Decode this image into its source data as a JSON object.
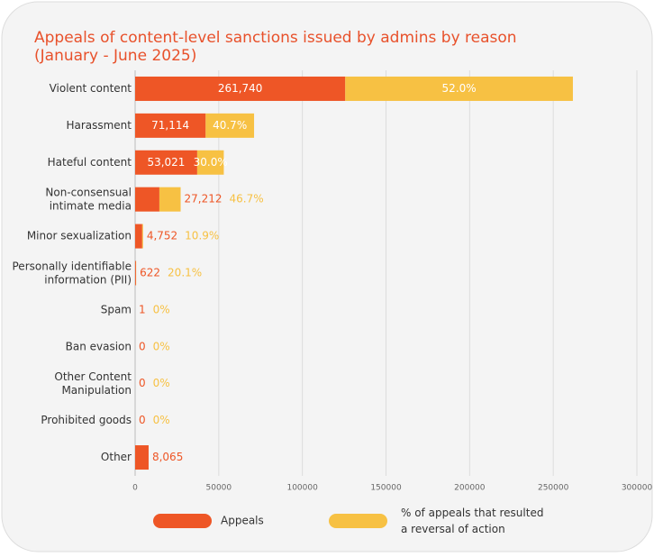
{
  "chart_data": {
    "type": "bar",
    "title": "Appeals of content-level sanctions issued by admins by reason\n(January - June 2025)",
    "categories": [
      "Violent content",
      "Harassment",
      "Hateful content",
      "Non-consensual\nintimate media",
      "Minor sexualization",
      "Personally identifiable\ninformation (PII)",
      "Spam",
      "Ban evasion",
      "Other Content\nManipulation",
      "Prohibited goods",
      "Other"
    ],
    "series": [
      {
        "name": "Appeals",
        "color": "#ee5626",
        "values": [
          261740,
          71114,
          53021,
          27212,
          4752,
          622,
          1,
          0,
          0,
          0,
          8065
        ],
        "value_labels": [
          "261,740",
          "71,114",
          "53,021",
          "27,212",
          "4,752",
          "622",
          "1",
          "0",
          "0",
          "0",
          "8,065"
        ]
      },
      {
        "name": "% of appeals that resulted\na reversal of action",
        "color": "#f7c143",
        "values": [
          52.0,
          40.7,
          30.0,
          46.7,
          10.9,
          20.1,
          0,
          0,
          0,
          0,
          null
        ],
        "value_labels": [
          "52.0%",
          "40.7%",
          "30.0%",
          "46.7%",
          "10.9%",
          "20.1%",
          "0%",
          "0%",
          "0%",
          "0%",
          null
        ]
      }
    ],
    "xlim": [
      0,
      300000
    ],
    "xticks": [
      0,
      50000,
      100000,
      150000,
      200000,
      250000,
      300000
    ],
    "grid": true
  }
}
